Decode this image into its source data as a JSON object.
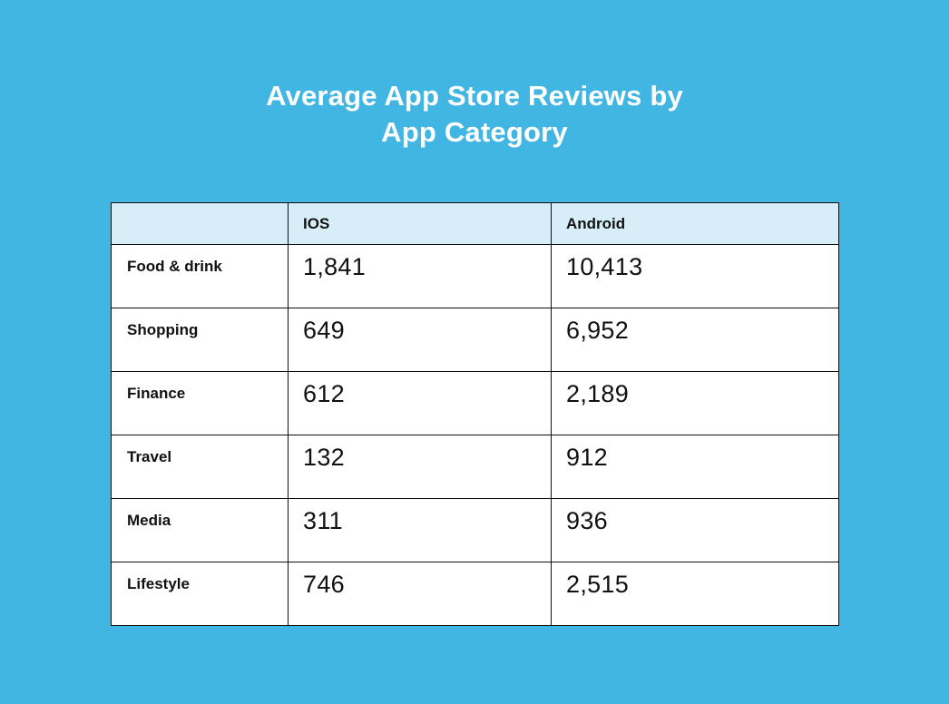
{
  "page": {
    "title_line1": "Average App Store Reviews by",
    "title_line2": "App Category"
  },
  "colors": {
    "background": "#41B6E3",
    "table_header_bg": "#D7EEF8",
    "table_border": "#101010",
    "title_color": "#FFFFFF",
    "text_color": "#111111"
  },
  "table": {
    "columns": [
      "",
      "IOS",
      "Android"
    ],
    "rows": [
      {
        "category": "Food & drink",
        "ios": "1,841",
        "android": "10,413"
      },
      {
        "category": "Shopping",
        "ios": "649",
        "android": "6,952"
      },
      {
        "category": "Finance",
        "ios": "612",
        "android": "2,189"
      },
      {
        "category": "Travel",
        "ios": "132",
        "android": "912"
      },
      {
        "category": "Media",
        "ios": "311",
        "android": "936"
      },
      {
        "category": "Lifestyle",
        "ios": "746",
        "android": "2,515"
      }
    ]
  },
  "chart_data": {
    "type": "table",
    "title": "Average App Store Reviews by App Category",
    "categories": [
      "Food & drink",
      "Shopping",
      "Finance",
      "Travel",
      "Media",
      "Lifestyle"
    ],
    "series": [
      {
        "name": "IOS",
        "values": [
          1841,
          649,
          612,
          132,
          311,
          746
        ]
      },
      {
        "name": "Android",
        "values": [
          10413,
          6952,
          2189,
          912,
          936,
          2515
        ]
      }
    ]
  }
}
